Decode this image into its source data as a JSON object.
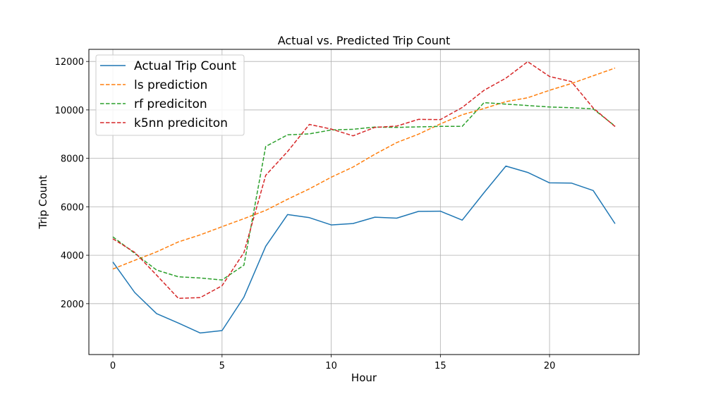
{
  "chart_data": {
    "type": "line",
    "title": "Actual vs. Predicted Trip Count",
    "xlabel": "Hour",
    "ylabel": "Trip Count",
    "xlim": [
      -1.1,
      24.1
    ],
    "ylim": [
      -100,
      12500
    ],
    "xticks": [
      0,
      5,
      10,
      15,
      20
    ],
    "yticks": [
      2000,
      4000,
      6000,
      8000,
      10000,
      12000
    ],
    "grid": true,
    "legend_position": "top-left",
    "x": [
      0,
      1,
      2,
      3,
      4,
      5,
      6,
      7,
      8,
      9,
      10,
      11,
      12,
      13,
      14,
      15,
      16,
      17,
      18,
      19,
      20,
      21,
      22,
      23
    ],
    "series": [
      {
        "name": "Actual Trip Count",
        "style": "solid",
        "color": "#1f77b4",
        "values": [
          3720,
          2460,
          1590,
          1200,
          790,
          890,
          2270,
          4370,
          5680,
          5550,
          5250,
          5310,
          5570,
          5530,
          5810,
          5820,
          5450,
          6580,
          7680,
          7420,
          6990,
          6980,
          6670,
          5300
        ]
      },
      {
        "name": "ls prediction",
        "style": "dashed",
        "color": "#ff7f0e",
        "values": [
          3430,
          3790,
          4140,
          4550,
          4840,
          5180,
          5510,
          5850,
          6310,
          6740,
          7220,
          7640,
          8170,
          8650,
          9000,
          9420,
          9800,
          10060,
          10340,
          10500,
          10810,
          11090,
          11410,
          11730
        ]
      },
      {
        "name": "rf prediciton",
        "style": "dashed",
        "color": "#2ca02c",
        "values": [
          4760,
          4080,
          3390,
          3110,
          3060,
          2980,
          3590,
          8490,
          8970,
          9010,
          9170,
          9200,
          9290,
          9280,
          9300,
          9320,
          9320,
          10300,
          10240,
          10180,
          10120,
          10090,
          10040,
          9330
        ]
      },
      {
        "name": "k5nn prediciton",
        "style": "dashed",
        "color": "#d62728",
        "values": [
          4680,
          4120,
          3180,
          2220,
          2250,
          2740,
          4110,
          7300,
          8280,
          9400,
          9210,
          8930,
          9280,
          9330,
          9610,
          9600,
          10100,
          10810,
          11310,
          11990,
          11380,
          11170,
          10080,
          9310
        ]
      }
    ]
  }
}
